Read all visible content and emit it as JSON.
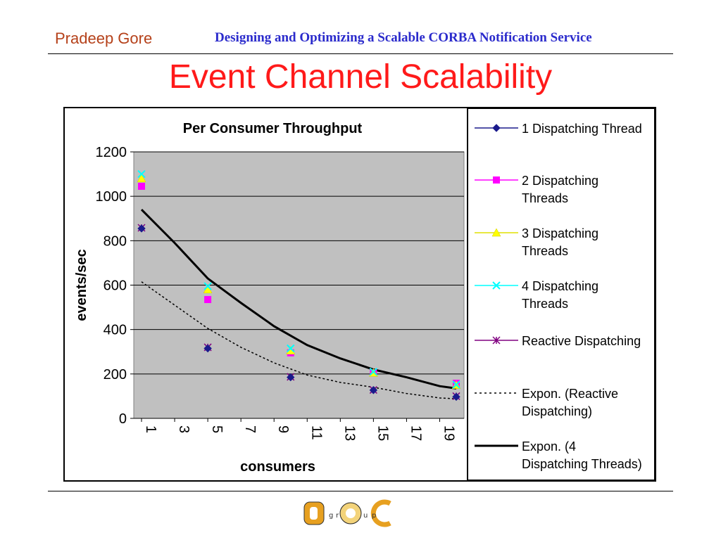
{
  "header": {
    "author": "Pradeep Gore",
    "title": "Designing and Optimizing a Scalable CORBA Notification Service"
  },
  "slide": {
    "title": "Event Channel Scalability"
  },
  "logo": {
    "text": "D g r o u p C"
  },
  "colors": {
    "title": "#ff1a1a",
    "author": "#b5411a",
    "header_title": "#2b2bcc",
    "plot_bg": "#c0c0c0"
  },
  "chart_data": {
    "type": "scatter",
    "title": "Per Consumer Throughput",
    "xlabel": "consumers",
    "ylabel": "events/sec",
    "xlim": [
      1,
      20
    ],
    "ylim": [
      0,
      1200
    ],
    "yticks": [
      "0",
      "200",
      "400",
      "600",
      "800",
      "1000",
      "1200"
    ],
    "xticks": [
      "1",
      "3",
      "5",
      "7",
      "9",
      "11",
      "13",
      "15",
      "17",
      "19"
    ],
    "grid": true,
    "legend_position": "right",
    "series": [
      {
        "name": "1 Dispatching Thread",
        "marker": "diamond",
        "color": "#1a1a8c",
        "x": [
          1,
          5,
          10,
          15,
          20
        ],
        "y": [
          855,
          315,
          185,
          127,
          97
        ]
      },
      {
        "name": "2 Dispatching Threads",
        "marker": "square",
        "color": "#ff00ff",
        "x": [
          1,
          5,
          10,
          15,
          20
        ],
        "y": [
          1045,
          535,
          295,
          205,
          158
        ]
      },
      {
        "name": "3 Dispatching Threads",
        "marker": "triangle",
        "color": "#ffff00",
        "x": [
          1,
          5,
          10,
          15,
          20
        ],
        "y": [
          1080,
          580,
          305,
          205,
          150
        ]
      },
      {
        "name": "4 Dispatching Threads",
        "marker": "x",
        "color": "#00ffff",
        "x": [
          1,
          5,
          10,
          15,
          20
        ],
        "y": [
          1100,
          595,
          315,
          210,
          152
        ]
      },
      {
        "name": "Reactive Dispatching",
        "marker": "star",
        "color": "#800080",
        "x": [
          1,
          5,
          10,
          15,
          20
        ],
        "y": [
          858,
          320,
          187,
          128,
          100
        ]
      }
    ],
    "trendlines": [
      {
        "name": "Expon. (Reactive Dispatching)",
        "style": "dotted",
        "color": "#000000",
        "x": [
          1,
          3,
          5,
          7,
          9,
          11,
          13,
          15,
          17,
          19,
          20
        ],
        "y": [
          615,
          510,
          405,
          320,
          250,
          195,
          162,
          140,
          112,
          92,
          88
        ]
      },
      {
        "name": "Expon. (4 Dispatching Threads)",
        "style": "solid",
        "color": "#000000",
        "x": [
          1,
          3,
          5,
          7,
          9,
          11,
          13,
          15,
          17,
          19,
          20
        ],
        "y": [
          940,
          790,
          630,
          520,
          415,
          330,
          270,
          220,
          185,
          145,
          135
        ]
      }
    ]
  }
}
